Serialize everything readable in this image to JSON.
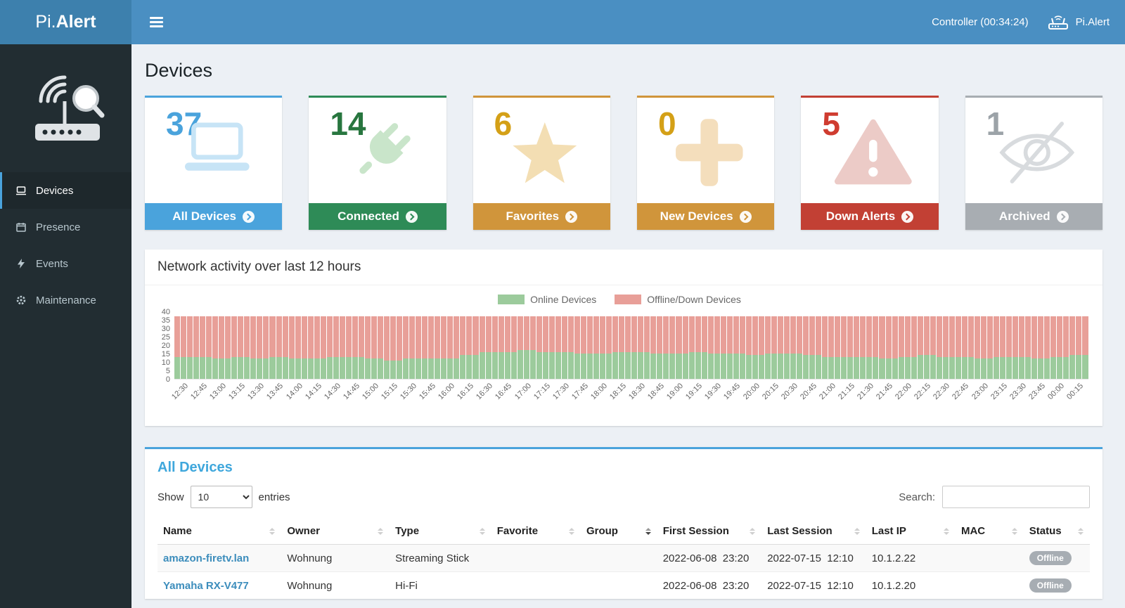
{
  "topbar": {
    "brand_prefix": "Pi.",
    "brand_suffix": "Alert",
    "controller_label": "Controller (00:34:24)",
    "device_label": "Pi.Alert"
  },
  "sidebar": {
    "items": [
      {
        "label": "Devices",
        "active": true
      },
      {
        "label": "Presence",
        "active": false
      },
      {
        "label": "Events",
        "active": false
      },
      {
        "label": "Maintenance",
        "active": false
      }
    ]
  },
  "page_title": "Devices",
  "cards": [
    {
      "value": "37",
      "label": "All Devices",
      "icon": "laptop-icon",
      "color": "#4aa3dc",
      "number_color": "#4aa3dc"
    },
    {
      "value": "14",
      "label": "Connected",
      "icon": "plug-icon",
      "color": "#2e8b57",
      "number_color": "#28763f"
    },
    {
      "value": "6",
      "label": "Favorites",
      "icon": "star-icon",
      "color": "#d0953b",
      "number_color": "#d4a017"
    },
    {
      "value": "0",
      "label": "New Devices",
      "icon": "plus-icon",
      "color": "#d0953b",
      "number_color": "#d4a017"
    },
    {
      "value": "5",
      "label": "Down Alerts",
      "icon": "warning-icon",
      "color": "#c24034",
      "number_color": "#cf3c30"
    },
    {
      "value": "1",
      "label": "Archived",
      "icon": "eye-slash-icon",
      "color": "#a8adb2",
      "number_color": "#9ca3a8"
    }
  ],
  "chart_panel": {
    "title": "Network activity over last 12 hours"
  },
  "chart_data": {
    "type": "bar",
    "stacked": true,
    "legend_position": "top",
    "ylim": [
      0,
      40
    ],
    "yticks": [
      0,
      5,
      10,
      15,
      20,
      25,
      30,
      35,
      40
    ],
    "bars_per_tick": 3,
    "x": [
      "12:30",
      "12:45",
      "13:00",
      "13:15",
      "13:30",
      "13:45",
      "14:00",
      "14:15",
      "14:30",
      "14:45",
      "15:00",
      "15:15",
      "15:30",
      "15:45",
      "16:00",
      "16:15",
      "16:30",
      "16:45",
      "17:00",
      "17:15",
      "17:30",
      "17:45",
      "18:00",
      "18:15",
      "18:30",
      "18:45",
      "19:00",
      "19:15",
      "19:30",
      "19:45",
      "20:00",
      "20:15",
      "20:30",
      "20:45",
      "21:00",
      "21:15",
      "21:30",
      "21:45",
      "22:00",
      "22:15",
      "22:30",
      "22:45",
      "23:00",
      "23:15",
      "23:30",
      "23:45",
      "00:00",
      "00:15"
    ],
    "series": [
      {
        "name": "Online Devices",
        "color": "#9ccb9c",
        "values": [
          13,
          13,
          12,
          13,
          12,
          13,
          12,
          12,
          13,
          13,
          12,
          11,
          12,
          12,
          12,
          14,
          16,
          16,
          17,
          16,
          16,
          15,
          15,
          16,
          16,
          15,
          15,
          16,
          15,
          15,
          14,
          15,
          15,
          14,
          13,
          13,
          13,
          12,
          13,
          14,
          13,
          13,
          12,
          13,
          13,
          12,
          13,
          14
        ]
      },
      {
        "name": "Offline/Down Devices",
        "color": "#e89f98",
        "values": [
          24,
          24,
          25,
          24,
          25,
          24,
          25,
          25,
          24,
          24,
          25,
          26,
          25,
          25,
          25,
          23,
          21,
          21,
          20,
          21,
          21,
          22,
          22,
          21,
          21,
          22,
          22,
          21,
          22,
          22,
          23,
          22,
          22,
          23,
          24,
          24,
          24,
          25,
          24,
          23,
          24,
          24,
          25,
          24,
          24,
          25,
          24,
          23
        ]
      }
    ]
  },
  "table_panel": {
    "title": "All Devices",
    "show_label": "Show",
    "entries_label": "entries",
    "page_size": "10",
    "search_label": "Search:",
    "search_value": "",
    "columns": [
      {
        "key": "name",
        "label": "Name",
        "sorted": false
      },
      {
        "key": "owner",
        "label": "Owner",
        "sorted": false
      },
      {
        "key": "type",
        "label": "Type",
        "sorted": false
      },
      {
        "key": "favorite",
        "label": "Favorite",
        "sorted": false
      },
      {
        "key": "group",
        "label": "Group",
        "sorted": true
      },
      {
        "key": "first_session",
        "label": "First Session",
        "sorted": false
      },
      {
        "key": "last_session",
        "label": "Last Session",
        "sorted": false
      },
      {
        "key": "last_ip",
        "label": "Last IP",
        "sorted": false
      },
      {
        "key": "mac",
        "label": "MAC",
        "sorted": false
      },
      {
        "key": "status",
        "label": "Status",
        "sorted": false
      }
    ],
    "rows": [
      {
        "name": "amazon-firetv.lan",
        "owner": "Wohnung",
        "type": "Streaming Stick",
        "favorite": "",
        "group": "",
        "first_session": "2022-06-08  23:20",
        "last_session": "2022-07-15  12:10",
        "last_ip": "10.1.2.22",
        "mac": "",
        "status": "Offline"
      },
      {
        "name": "Yamaha RX-V477",
        "owner": "Wohnung",
        "type": "Hi-Fi",
        "favorite": "",
        "group": "",
        "first_session": "2022-06-08  23:20",
        "last_session": "2022-07-15  12:10",
        "last_ip": "10.1.2.20",
        "mac": "",
        "status": "Offline"
      }
    ]
  }
}
